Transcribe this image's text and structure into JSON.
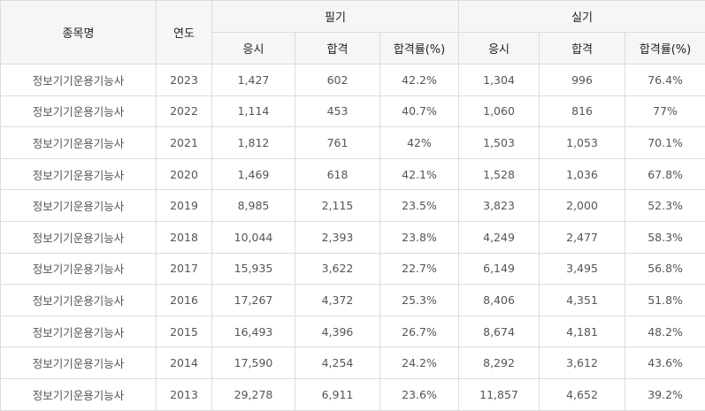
{
  "headers": {
    "item_name": "종목명",
    "year": "연도",
    "written": "필기",
    "practical": "실기",
    "applicants": "응시",
    "passed": "합격",
    "pass_rate": "합격률(%)"
  },
  "rows": [
    {
      "name": "정보기기운용기능사",
      "year": "2023",
      "w_app": "1,427",
      "w_pass": "602",
      "w_rate": "42.2%",
      "p_app": "1,304",
      "p_pass": "996",
      "p_rate": "76.4%"
    },
    {
      "name": "정보기기운용기능사",
      "year": "2022",
      "w_app": "1,114",
      "w_pass": "453",
      "w_rate": "40.7%",
      "p_app": "1,060",
      "p_pass": "816",
      "p_rate": "77%"
    },
    {
      "name": "정보기기운용기능사",
      "year": "2021",
      "w_app": "1,812",
      "w_pass": "761",
      "w_rate": "42%",
      "p_app": "1,503",
      "p_pass": "1,053",
      "p_rate": "70.1%"
    },
    {
      "name": "정보기기운용기능사",
      "year": "2020",
      "w_app": "1,469",
      "w_pass": "618",
      "w_rate": "42.1%",
      "p_app": "1,528",
      "p_pass": "1,036",
      "p_rate": "67.8%"
    },
    {
      "name": "정보기기운용기능사",
      "year": "2019",
      "w_app": "8,985",
      "w_pass": "2,115",
      "w_rate": "23.5%",
      "p_app": "3,823",
      "p_pass": "2,000",
      "p_rate": "52.3%"
    },
    {
      "name": "정보기기운용기능사",
      "year": "2018",
      "w_app": "10,044",
      "w_pass": "2,393",
      "w_rate": "23.8%",
      "p_app": "4,249",
      "p_pass": "2,477",
      "p_rate": "58.3%"
    },
    {
      "name": "정보기기운용기능사",
      "year": "2017",
      "w_app": "15,935",
      "w_pass": "3,622",
      "w_rate": "22.7%",
      "p_app": "6,149",
      "p_pass": "3,495",
      "p_rate": "56.8%"
    },
    {
      "name": "정보기기운용기능사",
      "year": "2016",
      "w_app": "17,267",
      "w_pass": "4,372",
      "w_rate": "25.3%",
      "p_app": "8,406",
      "p_pass": "4,351",
      "p_rate": "51.8%"
    },
    {
      "name": "정보기기운용기능사",
      "year": "2015",
      "w_app": "16,493",
      "w_pass": "4,396",
      "w_rate": "26.7%",
      "p_app": "8,674",
      "p_pass": "4,181",
      "p_rate": "48.2%"
    },
    {
      "name": "정보기기운용기능사",
      "year": "2014",
      "w_app": "17,590",
      "w_pass": "4,254",
      "w_rate": "24.2%",
      "p_app": "8,292",
      "p_pass": "3,612",
      "p_rate": "43.6%"
    },
    {
      "name": "정보기기운용기능사",
      "year": "2013",
      "w_app": "29,278",
      "w_pass": "6,911",
      "w_rate": "23.6%",
      "p_app": "11,857",
      "p_pass": "4,652",
      "p_rate": "39.2%"
    }
  ]
}
